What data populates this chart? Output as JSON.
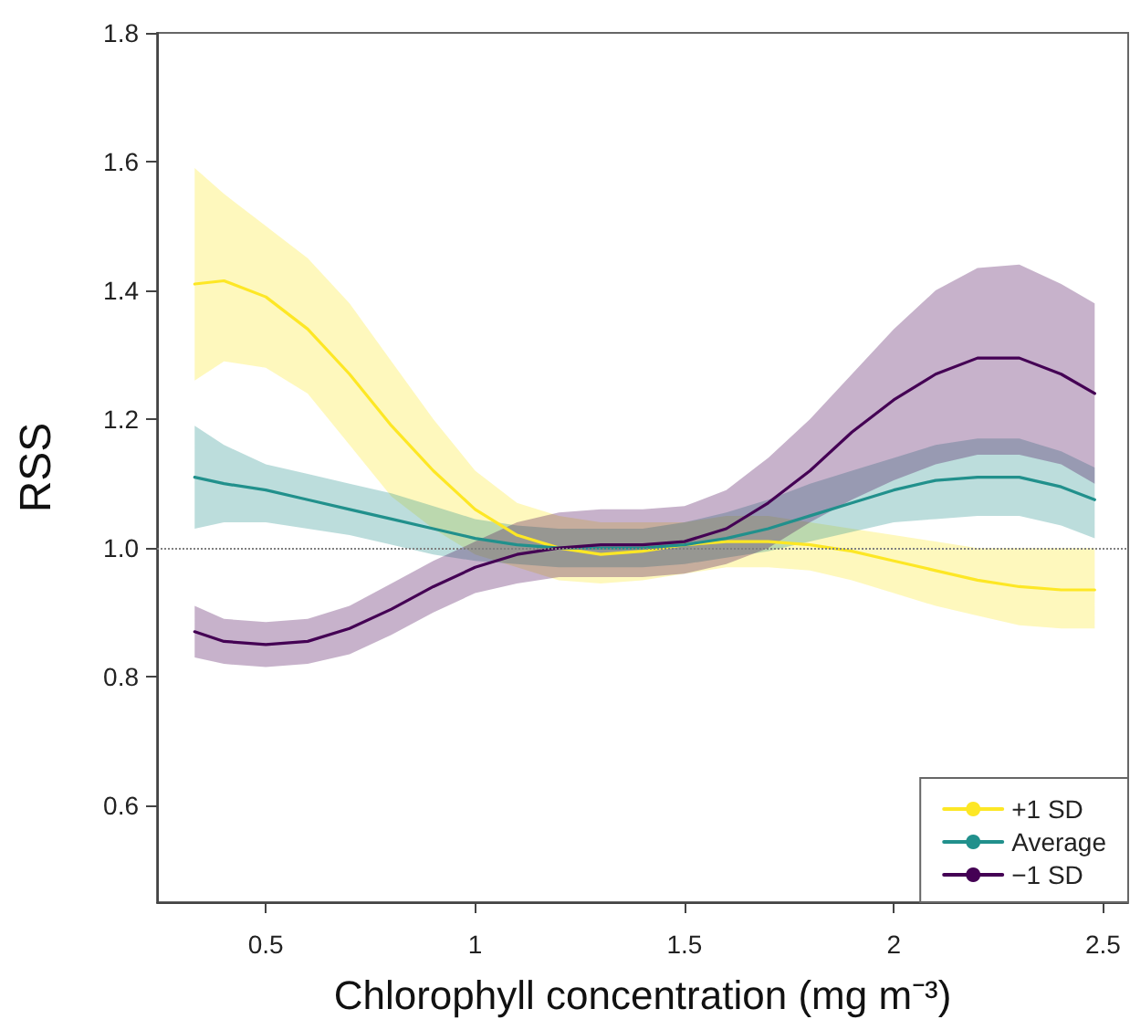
{
  "chart_data": {
    "type": "line",
    "xlabel": "Chlorophyll concentration (mg m⁻³)",
    "ylabel": "RSS",
    "x": [
      0.33,
      0.4,
      0.5,
      0.6,
      0.7,
      0.8,
      0.9,
      1.0,
      1.1,
      1.2,
      1.3,
      1.4,
      1.5,
      1.6,
      1.7,
      1.8,
      1.9,
      2.0,
      2.1,
      2.2,
      2.3,
      2.4,
      2.48
    ],
    "series": [
      {
        "name": "+1 SD",
        "color": "#fde725",
        "values": [
          1.41,
          1.415,
          1.39,
          1.34,
          1.27,
          1.19,
          1.12,
          1.06,
          1.02,
          1.0,
          0.99,
          0.995,
          1.005,
          1.01,
          1.01,
          1.005,
          0.995,
          0.98,
          0.965,
          0.95,
          0.94,
          0.935,
          0.935
        ],
        "lower": [
          1.26,
          1.29,
          1.28,
          1.24,
          1.16,
          1.08,
          1.03,
          0.99,
          0.97,
          0.95,
          0.945,
          0.95,
          0.96,
          0.97,
          0.97,
          0.965,
          0.95,
          0.93,
          0.91,
          0.895,
          0.88,
          0.875,
          0.875
        ],
        "upper": [
          1.59,
          1.55,
          1.5,
          1.45,
          1.38,
          1.29,
          1.2,
          1.12,
          1.07,
          1.05,
          1.04,
          1.04,
          1.04,
          1.05,
          1.05,
          1.04,
          1.03,
          1.02,
          1.01,
          1.0,
          1.0,
          1.0,
          1.0
        ]
      },
      {
        "name": "Average",
        "color": "#21908c",
        "values": [
          1.11,
          1.1,
          1.09,
          1.075,
          1.06,
          1.045,
          1.03,
          1.015,
          1.005,
          1.0,
          1.0,
          1.0,
          1.005,
          1.015,
          1.03,
          1.05,
          1.07,
          1.09,
          1.105,
          1.11,
          1.11,
          1.095,
          1.075
        ],
        "lower": [
          1.03,
          1.04,
          1.04,
          1.03,
          1.02,
          1.005,
          0.99,
          0.98,
          0.975,
          0.97,
          0.97,
          0.97,
          0.975,
          0.985,
          0.995,
          1.01,
          1.025,
          1.04,
          1.045,
          1.05,
          1.05,
          1.035,
          1.015
        ],
        "upper": [
          1.19,
          1.16,
          1.13,
          1.115,
          1.1,
          1.085,
          1.065,
          1.045,
          1.035,
          1.03,
          1.03,
          1.03,
          1.04,
          1.055,
          1.075,
          1.1,
          1.12,
          1.14,
          1.16,
          1.17,
          1.17,
          1.15,
          1.125
        ]
      },
      {
        "name": "−1 SD",
        "color": "#440154",
        "values": [
          0.87,
          0.855,
          0.85,
          0.855,
          0.875,
          0.905,
          0.94,
          0.97,
          0.99,
          1.0,
          1.005,
          1.005,
          1.01,
          1.03,
          1.07,
          1.12,
          1.18,
          1.23,
          1.27,
          1.295,
          1.295,
          1.27,
          1.24
        ],
        "lower": [
          0.83,
          0.82,
          0.815,
          0.82,
          0.835,
          0.865,
          0.9,
          0.93,
          0.945,
          0.955,
          0.955,
          0.955,
          0.96,
          0.975,
          1.0,
          1.04,
          1.075,
          1.105,
          1.13,
          1.145,
          1.145,
          1.13,
          1.1
        ],
        "upper": [
          0.91,
          0.89,
          0.885,
          0.89,
          0.91,
          0.945,
          0.98,
          1.01,
          1.04,
          1.055,
          1.06,
          1.06,
          1.065,
          1.09,
          1.14,
          1.2,
          1.27,
          1.34,
          1.4,
          1.435,
          1.44,
          1.41,
          1.38
        ]
      }
    ],
    "xlim": [
      0.24,
      2.56
    ],
    "xticks": [
      0.5,
      1,
      1.5,
      2,
      2.5
    ],
    "ylim": [
      0.45,
      1.8
    ],
    "yticks": [
      0.6,
      0.8,
      {
        "value": 1,
        "label": "1.0"
      },
      1.2,
      1.4,
      1.6,
      1.8
    ],
    "ref_lines": [
      {
        "axis": "y",
        "value": 1,
        "color": "#808080",
        "line_style": "dotted"
      }
    ],
    "legend": "bottom right",
    "grid": false,
    "marker": "none",
    "line_style": "solid"
  }
}
